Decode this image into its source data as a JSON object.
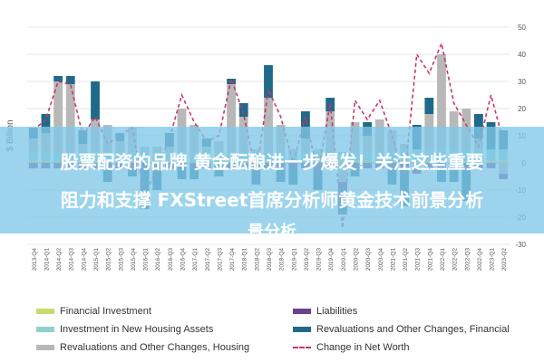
{
  "overlay": {
    "line1": "股票配资的品牌 黄金酝酿进一步爆发！关注这些重要",
    "line2": "阻力和支撑 FXStreet首席分析师黄金技术前景分析",
    "line3": "景分析"
  },
  "chart_data": {
    "type": "bar",
    "stacked": true,
    "ylabel": "$ Billion",
    "ylim": [
      -30,
      50
    ],
    "yticks": [
      -30,
      -20,
      -10,
      0,
      10,
      20,
      30,
      40,
      50
    ],
    "grid": true,
    "legend_position": "bottom",
    "categories": [
      "2013-Q4",
      "2014-Q1",
      "2014-Q2",
      "2014-Q3",
      "2014-Q4",
      "2015-Q1",
      "2015-Q2",
      "2015-Q3",
      "2015-Q4",
      "2016-Q1",
      "2016-Q2",
      "2016-Q3",
      "2016-Q4",
      "2017-Q1",
      "2017-Q2",
      "2017-Q3",
      "2017-Q4",
      "2018-Q1",
      "2018-Q2",
      "2018-Q3",
      "2018-Q4",
      "2019-Q1",
      "2019-Q2",
      "2019-Q3",
      "2019-Q4",
      "2020-Q1",
      "2020-Q2",
      "2020-Q3",
      "2020-Q4",
      "2021-Q1",
      "2021-Q2",
      "2021-Q3",
      "2021-Q4",
      "2022-Q1",
      "2022-Q2",
      "2022-Q3",
      "2022-Q4",
      "2023-Q1",
      "2023-Q2"
    ],
    "series": [
      {
        "name": "Financial Investment",
        "color": "#c9d96b",
        "kind": "bar",
        "values": [
          1,
          1,
          1,
          1,
          1,
          1,
          1,
          1,
          1,
          1,
          1,
          1,
          1,
          1,
          1,
          1,
          1,
          1,
          1,
          1,
          1,
          1,
          1,
          1,
          1,
          1,
          1,
          1,
          1,
          1,
          1,
          1,
          1,
          1,
          1,
          1,
          1,
          1,
          1
        ]
      },
      {
        "name": "Investment in New Housing Assets",
        "color": "#8fd0cc",
        "kind": "bar",
        "values": [
          3,
          3,
          3,
          3,
          3,
          3,
          3,
          3,
          3,
          3,
          3,
          3,
          3,
          3,
          3,
          3,
          3,
          3,
          3,
          3,
          3,
          3,
          3,
          3,
          3,
          3,
          3,
          3,
          3,
          3,
          4,
          4,
          4,
          4,
          4,
          4,
          4,
          4,
          4
        ]
      },
      {
        "name": "Revaluations and Other Changes, Housing",
        "color": "#b8b8b8",
        "kind": "bar",
        "values": [
          5,
          7,
          26,
          25,
          3,
          12,
          10,
          4,
          9,
          2,
          2,
          2,
          16,
          10,
          2,
          4,
          25,
          13,
          1,
          20,
          10,
          1,
          5,
          1,
          15,
          -7,
          11,
          6,
          12,
          8,
          2,
          -2,
          13,
          35,
          14,
          15,
          4,
          0,
          -4
        ]
      },
      {
        "name": "Liabilities",
        "color": "#6e3f8c",
        "kind": "bar",
        "values": [
          -2,
          -2,
          -2,
          -2,
          -2,
          -2,
          -2,
          -2,
          -2,
          -2,
          -2,
          -2,
          -2,
          -2,
          -2,
          -2,
          -2,
          -2,
          -2,
          -2,
          -2,
          -2,
          -2,
          -2,
          -2,
          -2,
          -2,
          -2,
          -2,
          -2,
          -2,
          -2,
          -2,
          -2,
          -2,
          -2,
          -2,
          -2,
          -2
        ]
      },
      {
        "name": "Revaluations and Other Changes, Financial",
        "color": "#1f6a8a",
        "kind": "bar",
        "values": [
          4,
          7,
          2,
          3,
          5,
          14,
          -5,
          3,
          -3,
          -15,
          -8,
          5,
          -4,
          -4,
          3,
          -3,
          2,
          5,
          -6,
          12,
          -5,
          -6,
          10,
          -8,
          5,
          -10,
          -3,
          5,
          0,
          -6,
          -14,
          9,
          6,
          -5,
          -5,
          -12,
          9,
          10,
          7
        ]
      },
      {
        "name": "Change in Net Worth",
        "color": "#c8356a",
        "kind": "line",
        "values": [
          12,
          16,
          30,
          29,
          10,
          17,
          7,
          10,
          13,
          -12,
          -2,
          9,
          25,
          15,
          8,
          10,
          31,
          18,
          -4,
          27,
          17,
          0,
          17,
          -4,
          22,
          -24,
          23,
          16,
          23,
          10,
          -6,
          40,
          33,
          44,
          22,
          14,
          6,
          25,
          8
        ]
      }
    ]
  }
}
